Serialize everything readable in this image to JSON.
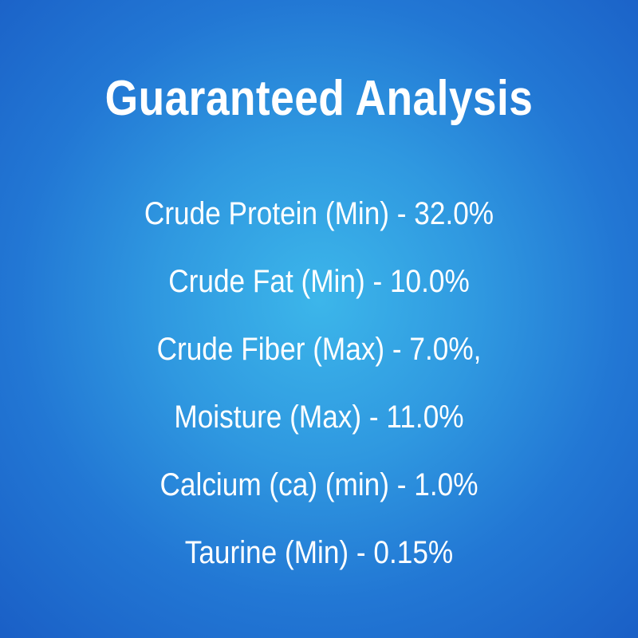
{
  "title": "Guaranteed Analysis",
  "colors": {
    "background_center": "#3cb6ea",
    "background_edge": "#1a5fc6",
    "text": "#ffffff"
  },
  "items": [
    "Crude Protein (Min) - 32.0%",
    "Crude Fat (Min) - 10.0%",
    "Crude Fiber (Max) - 7.0%,",
    "Moisture (Max) - 11.0%",
    "Calcium (ca) (min) - 1.0%",
    "Taurine (Min) - 0.15%"
  ]
}
